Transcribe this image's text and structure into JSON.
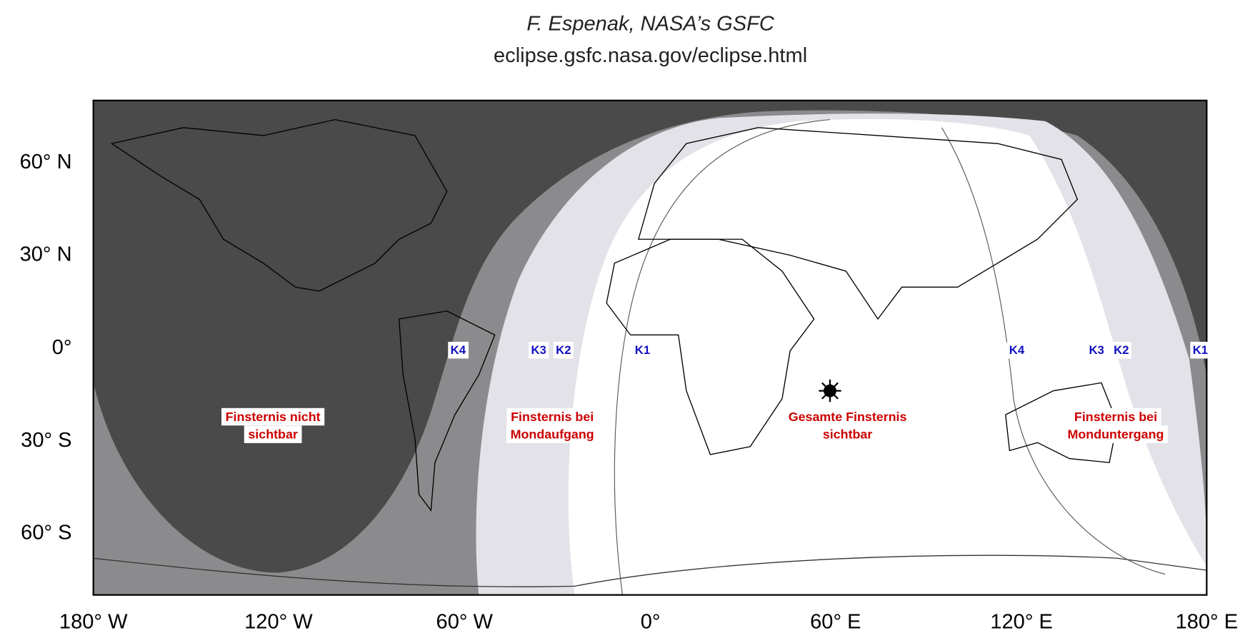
{
  "header": {
    "credit": "F. Espenak, NASA’s GSFC",
    "url": "eclipse.gsfc.nasa.gov/eclipse.html"
  },
  "axes": {
    "latitude_labels": [
      "60° N",
      "30° N",
      "0°",
      "30° S",
      "60° S"
    ],
    "longitude_labels": [
      "180° W",
      "120° W",
      "60° W",
      "0°",
      "60° E",
      "120° E",
      "180° E"
    ]
  },
  "regions": [
    {
      "lines": [
        "Finsternis nicht",
        "sichtbar"
      ]
    },
    {
      "lines": [
        "Finsternis bei",
        "Mondaufgang"
      ]
    },
    {
      "lines": [
        "Gesamte Finsternis",
        "sichtbar"
      ]
    },
    {
      "lines": [
        "Finsternis bei",
        "Monduntergang"
      ]
    }
  ],
  "contacts": {
    "west": [
      "K4",
      "K3",
      "K2",
      "K1"
    ],
    "east": [
      "K4",
      "K3",
      "K2",
      "K1"
    ]
  }
}
